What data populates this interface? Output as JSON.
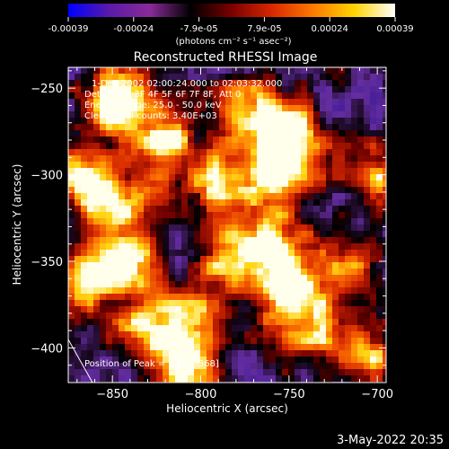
{
  "colorbar": {
    "tick_labels": [
      "-0.00039",
      "-0.00024",
      "-7.9e-05",
      "7.9e-05",
      "0.00024",
      "0.00039"
    ],
    "unit_label": "(photons cm⁻² s⁻¹ asec⁻²)",
    "range": [
      -0.00039,
      0.00039
    ],
    "colors": [
      "#0000ff",
      "#5a1aa8",
      "#8a2a9a",
      "#000000",
      "#7a0000",
      "#d82800",
      "#ff7a00",
      "#ffd400",
      "#ffffff"
    ]
  },
  "chart_data": {
    "type": "heatmap",
    "title": "Reconstructed RHESSI Image",
    "xlabel": "Heliocentric X (arcsec)",
    "ylabel": "Heliocentric Y (arcsec)",
    "xlim": [
      -875,
      -695
    ],
    "ylim": [
      -420,
      -238
    ],
    "x_ticks": [
      -850,
      -800,
      -750,
      -700
    ],
    "x_tick_labels": [
      "−850",
      "−800",
      "−750",
      "−700"
    ],
    "y_ticks": [
      -250,
      -300,
      -350,
      -400
    ],
    "y_tick_labels": [
      "−250",
      "−300",
      "−350",
      "−400"
    ],
    "annotations": [
      "1-Dec-2002 02:00:24.000 to 02:03:32.000",
      "Detectors: 3F 4F 5F 6F 7F 8F, Att 0",
      "Energy Range: 25.0 - 50.0 keV",
      "Clean    Total counts: 3.40E+03"
    ],
    "peak_label": "Position of Peak = [-752,-368]",
    "peak": [
      -752,
      -368
    ],
    "hot_spots": [
      {
        "x": -848,
        "y": -258,
        "v": 1.0
      },
      {
        "x": -822,
        "y": -282,
        "v": 0.9
      },
      {
        "x": -868,
        "y": -300,
        "v": 0.75
      },
      {
        "x": -848,
        "y": -318,
        "v": 0.7
      },
      {
        "x": -868,
        "y": -360,
        "v": 0.9
      },
      {
        "x": -840,
        "y": -352,
        "v": 0.8
      },
      {
        "x": -828,
        "y": -390,
        "v": 0.75
      },
      {
        "x": -808,
        "y": -415,
        "v": 0.95
      },
      {
        "x": -760,
        "y": -340,
        "v": 0.8
      },
      {
        "x": -752,
        "y": -368,
        "v": 1.0
      },
      {
        "x": -735,
        "y": -390,
        "v": 0.6
      },
      {
        "x": -758,
        "y": -300,
        "v": 0.85
      },
      {
        "x": -750,
        "y": -278,
        "v": 0.9
      },
      {
        "x": -772,
        "y": -262,
        "v": 0.7
      },
      {
        "x": -785,
        "y": -345,
        "v": 0.7
      },
      {
        "x": -700,
        "y": -300,
        "v": 0.6
      },
      {
        "x": -705,
        "y": -405,
        "v": 0.6
      },
      {
        "x": -720,
        "y": -352,
        "v": 0.55
      },
      {
        "x": -790,
        "y": -305,
        "v": 0.65
      },
      {
        "x": -800,
        "y": -380,
        "v": 0.55
      }
    ]
  },
  "footer": {
    "date": "3-May-2022 20:35"
  }
}
